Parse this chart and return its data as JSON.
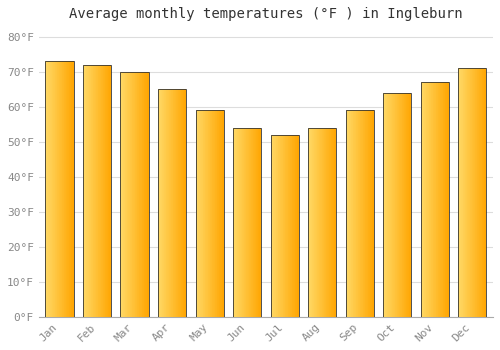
{
  "title": "Average monthly temperatures (°F ) in Ingleburn",
  "months": [
    "Jan",
    "Feb",
    "Mar",
    "Apr",
    "May",
    "Jun",
    "Jul",
    "Aug",
    "Sep",
    "Oct",
    "Nov",
    "Dec"
  ],
  "values": [
    73,
    72,
    70,
    65,
    59,
    54,
    52,
    54,
    59,
    64,
    67,
    71
  ],
  "bar_color_left": "#FFD966",
  "bar_color_right": "#FFA500",
  "bar_edge_color": "#333333",
  "background_color": "#FFFFFF",
  "grid_color": "#DDDDDD",
  "text_color": "#888888",
  "ytick_labels": [
    "0°F",
    "10°F",
    "20°F",
    "30°F",
    "40°F",
    "50°F",
    "60°F",
    "70°F",
    "80°F"
  ],
  "ytick_values": [
    0,
    10,
    20,
    30,
    40,
    50,
    60,
    70,
    80
  ],
  "ylim": [
    0,
    83
  ],
  "title_fontsize": 10,
  "tick_fontsize": 8,
  "bar_width": 0.75
}
